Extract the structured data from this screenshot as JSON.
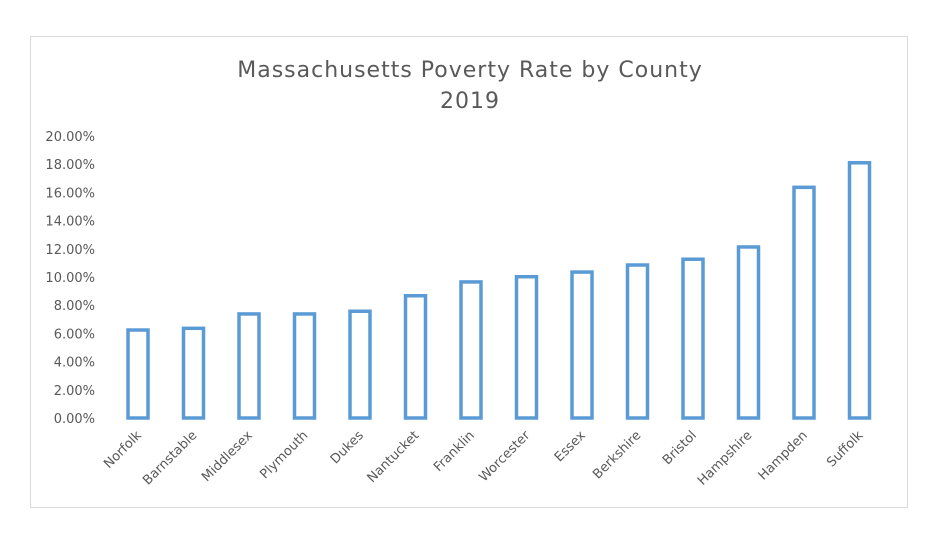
{
  "chart_data": {
    "type": "bar",
    "title": "Massachusetts Poverty Rate by County",
    "subtitle": "2019",
    "xlabel": "",
    "ylabel": "",
    "categories": [
      "Norfolk",
      "Barnstable",
      "Middlesex",
      "Plymouth",
      "Dukes",
      "Nantucket",
      "Franklin",
      "Worcester",
      "Essex",
      "Berkshire",
      "Bristol",
      "Hampshire",
      "Hampden",
      "Suffolk"
    ],
    "values": [
      6.24,
      6.36,
      7.38,
      7.38,
      7.57,
      8.67,
      9.65,
      10.02,
      10.35,
      10.85,
      11.26,
      12.13,
      16.36,
      18.1
    ],
    "ylim": [
      0,
      20
    ],
    "yticks": [
      "0.00%",
      "2.00%",
      "4.00%",
      "6.00%",
      "8.00%",
      "10.00%",
      "12.00%",
      "14.00%",
      "16.00%",
      "18.00%",
      "20.00%"
    ],
    "grid": false,
    "legend": "none",
    "bar_style": "outline",
    "colors": {
      "bar_outline": "#5b9bd5",
      "bar_fill": "#ffffff",
      "text": "#595959"
    }
  }
}
